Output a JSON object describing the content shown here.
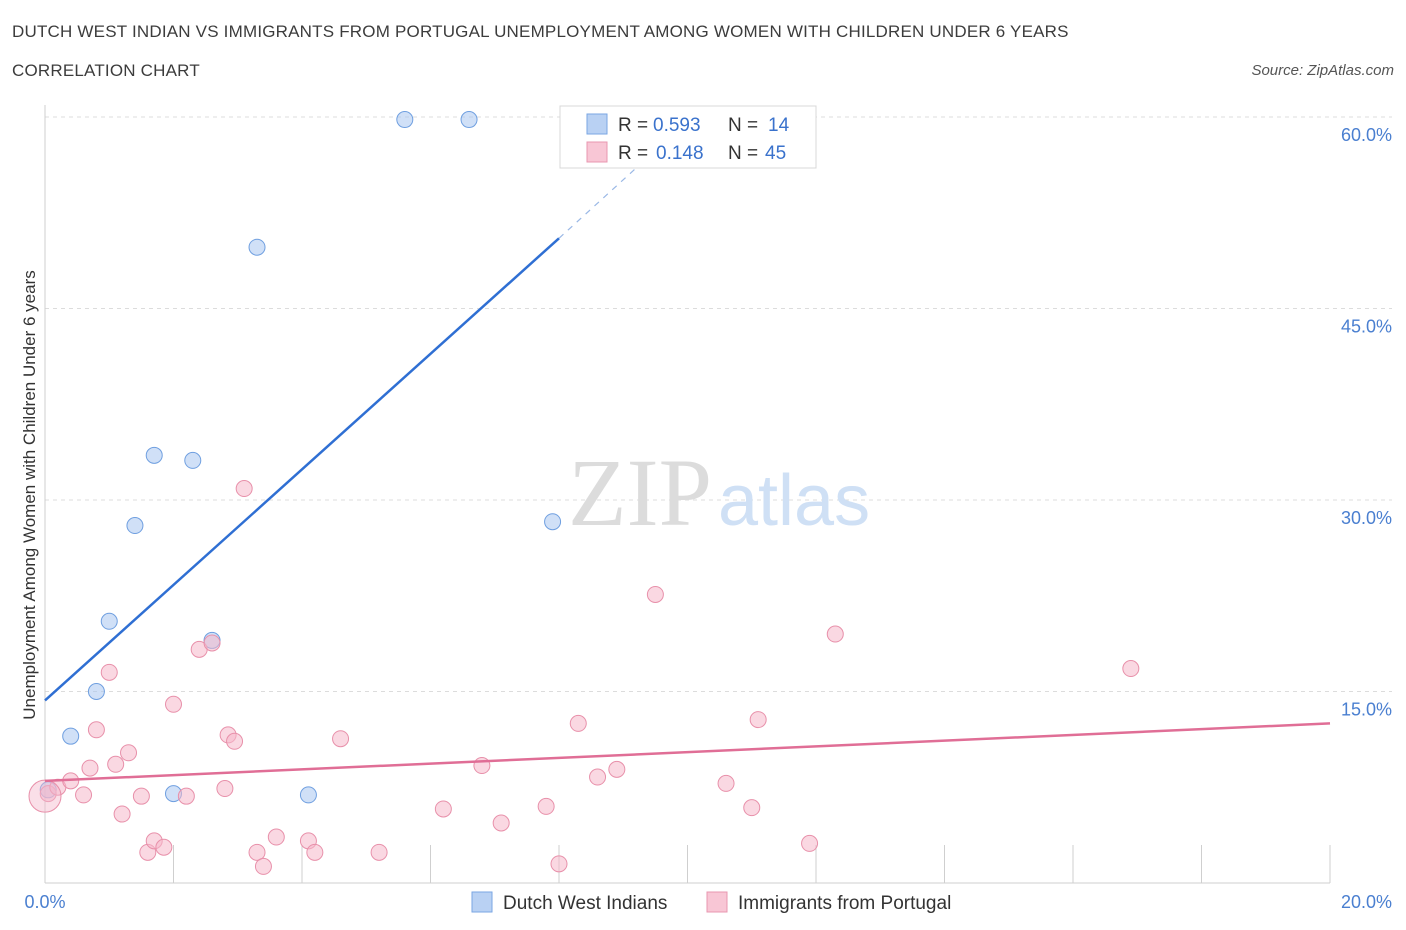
{
  "title": "DUTCH WEST INDIAN VS IMMIGRANTS FROM PORTUGAL UNEMPLOYMENT AMONG WOMEN WITH CHILDREN UNDER 6 YEARS",
  "subtitle": "CORRELATION CHART",
  "source": "Source: ZipAtlas.com",
  "watermark": {
    "zip": "ZIP",
    "atlas": "atlas"
  },
  "chart_data": {
    "type": "scatter",
    "xlabel": "",
    "ylabel": "Unemployment Among Women with Children Under 6 years",
    "xlim": [
      0,
      20
    ],
    "ylim": [
      0,
      60
    ],
    "x_tick_labels": [
      "0.0%",
      "20.0%"
    ],
    "y_ticks": [
      15,
      30,
      45,
      60
    ],
    "y_tick_labels": [
      "15.0%",
      "30.0%",
      "45.0%",
      "60.0%"
    ],
    "grid": true,
    "legend_position": "top-center",
    "series": [
      {
        "name": "Dutch West Indians",
        "color": "#a9c6f0",
        "stroke": "#6f9fe0",
        "line_color": "#2f6fd3",
        "R": "0.593",
        "N": "14",
        "trend": {
          "x0": 0,
          "y0": 14.3,
          "x1": 8.0,
          "y1": 50.5,
          "dash_to_x": 9.2,
          "dash_to_y": 56.0
        },
        "points": [
          {
            "x": 0.05,
            "y": 7.3
          },
          {
            "x": 0.4,
            "y": 11.5
          },
          {
            "x": 0.8,
            "y": 15.0
          },
          {
            "x": 1.0,
            "y": 20.5
          },
          {
            "x": 1.4,
            "y": 28.0
          },
          {
            "x": 1.7,
            "y": 33.5
          },
          {
            "x": 2.3,
            "y": 33.1
          },
          {
            "x": 2.6,
            "y": 19.0
          },
          {
            "x": 2.0,
            "y": 7.0
          },
          {
            "x": 3.3,
            "y": 49.8
          },
          {
            "x": 4.1,
            "y": 6.9
          },
          {
            "x": 5.6,
            "y": 59.8
          },
          {
            "x": 6.6,
            "y": 59.8
          },
          {
            "x": 7.9,
            "y": 28.3
          }
        ]
      },
      {
        "name": "Immigrants from Portugal",
        "color": "#f5b8cb",
        "stroke": "#e890aa",
        "line_color": "#e06e96",
        "R": "0.148",
        "N": "45",
        "trend": {
          "x0": 0,
          "y0": 8.0,
          "x1": 20,
          "y1": 12.5
        },
        "points": [
          {
            "x": 0.05,
            "y": 7.0
          },
          {
            "x": 0.2,
            "y": 7.5
          },
          {
            "x": 0.4,
            "y": 8.0
          },
          {
            "x": 0.6,
            "y": 6.9
          },
          {
            "x": 0.7,
            "y": 9.0
          },
          {
            "x": 0.8,
            "y": 12.0
          },
          {
            "x": 1.0,
            "y": 16.5
          },
          {
            "x": 1.1,
            "y": 9.3
          },
          {
            "x": 1.2,
            "y": 5.4
          },
          {
            "x": 1.3,
            "y": 10.2
          },
          {
            "x": 1.5,
            "y": 6.8
          },
          {
            "x": 1.6,
            "y": 2.4
          },
          {
            "x": 1.7,
            "y": 3.3
          },
          {
            "x": 1.85,
            "y": 2.8
          },
          {
            "x": 2.0,
            "y": 14.0
          },
          {
            "x": 2.2,
            "y": 6.8
          },
          {
            "x": 2.4,
            "y": 18.3
          },
          {
            "x": 2.6,
            "y": 18.8
          },
          {
            "x": 2.8,
            "y": 7.4
          },
          {
            "x": 2.85,
            "y": 11.6
          },
          {
            "x": 2.95,
            "y": 11.1
          },
          {
            "x": 3.1,
            "y": 30.9
          },
          {
            "x": 3.3,
            "y": 2.4
          },
          {
            "x": 3.4,
            "y": 1.3
          },
          {
            "x": 3.6,
            "y": 3.6
          },
          {
            "x": 4.1,
            "y": 3.3
          },
          {
            "x": 4.2,
            "y": 2.4
          },
          {
            "x": 4.6,
            "y": 11.3
          },
          {
            "x": 5.2,
            "y": 2.4
          },
          {
            "x": 6.2,
            "y": 5.8
          },
          {
            "x": 6.8,
            "y": 9.2
          },
          {
            "x": 7.1,
            "y": 4.7
          },
          {
            "x": 7.8,
            "y": 6.0
          },
          {
            "x": 8.0,
            "y": 1.5
          },
          {
            "x": 8.3,
            "y": 12.5
          },
          {
            "x": 8.6,
            "y": 8.3
          },
          {
            "x": 8.9,
            "y": 8.9
          },
          {
            "x": 9.5,
            "y": 22.6
          },
          {
            "x": 10.6,
            "y": 7.8
          },
          {
            "x": 11.0,
            "y": 5.9
          },
          {
            "x": 11.1,
            "y": 12.8
          },
          {
            "x": 11.9,
            "y": 3.1
          },
          {
            "x": 12.3,
            "y": 19.5
          },
          {
            "x": 16.9,
            "y": 16.8
          },
          {
            "x": 0.0,
            "y": 6.8
          }
        ]
      }
    ]
  }
}
